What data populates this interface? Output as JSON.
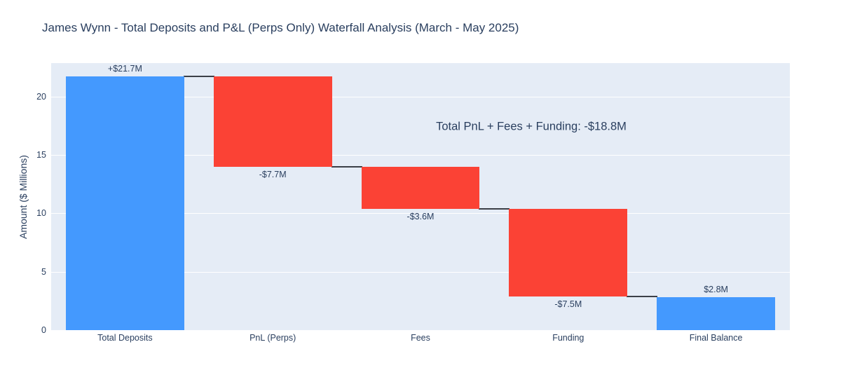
{
  "chart_data": {
    "type": "bar",
    "subtype": "waterfall",
    "title": "James Wynn - Total Deposits and P&L (Perps Only) Waterfall Analysis (March - May 2025)",
    "xlabel": "",
    "ylabel": "Amount ($ Millions)",
    "ylim": [
      0,
      22.85
    ],
    "yticks": [
      0,
      5,
      10,
      15,
      20
    ],
    "grid": true,
    "legend": false,
    "annotation": "Total PnL + Fees + Funding: -$18.8M",
    "categories": [
      "Total Deposits",
      "PnL (Perps)",
      "Fees",
      "Funding",
      "Final Balance"
    ],
    "values": [
      21.7,
      -7.7,
      -3.6,
      -7.5,
      2.8
    ],
    "bars": [
      {
        "category": "Total Deposits",
        "from": 0,
        "to": 21.7,
        "direction": "increase",
        "label": "+$21.7M",
        "label_pos": "above"
      },
      {
        "category": "PnL (Perps)",
        "from": 21.7,
        "to": 14.0,
        "direction": "decrease",
        "label": "-$7.7M",
        "label_pos": "below"
      },
      {
        "category": "Fees",
        "from": 14.0,
        "to": 10.4,
        "direction": "decrease",
        "label": "-$3.6M",
        "label_pos": "below"
      },
      {
        "category": "Funding",
        "from": 10.4,
        "to": 2.9,
        "direction": "decrease",
        "label": "-$7.5M",
        "label_pos": "below"
      },
      {
        "category": "Final Balance",
        "from": 0,
        "to": 2.8,
        "direction": "total",
        "label": "$2.8M",
        "label_pos": "above"
      }
    ],
    "colors": {
      "increase": "#4499fe",
      "decrease": "#fb4235",
      "total": "#4499fe",
      "connector": "#3b3f47",
      "plot_background": "#e5ecf6",
      "gridline": "#ffffff",
      "text": "#2a3f5f",
      "page_background": "#ffffff"
    }
  }
}
